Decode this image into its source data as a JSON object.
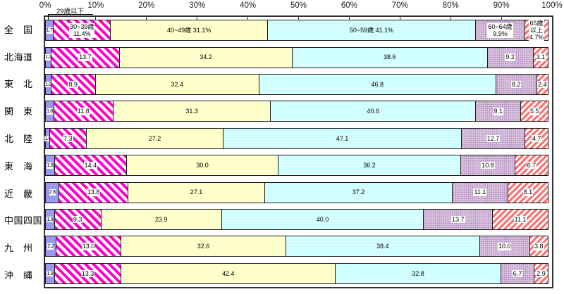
{
  "callout": {
    "label": "29歳以下"
  },
  "chart_data": {
    "type": "bar",
    "subtype": "stacked-horizontal-100percent",
    "orientation": "horizontal",
    "unit": "%",
    "xlim": [
      0,
      100
    ],
    "x_tick_labels": [
      "0%",
      "10%",
      "20%",
      "30%",
      "40%",
      "50%",
      "60%",
      "70%",
      "80%",
      "90%",
      "100%"
    ],
    "grid": "top-ticks-only",
    "legend_position": "inline-first-row",
    "categories": [
      "全　国",
      "北海道",
      "東　北",
      "関　東",
      "北　陸",
      "東　海",
      "近　畿",
      "中国四国",
      "九　州",
      "沖　縄"
    ],
    "series": [
      {
        "name": "29歳以下",
        "color": "#9999ee",
        "pattern": "solid",
        "values": [
          1.7,
          1.2,
          1.2,
          1.8,
          1.0,
          1.9,
          2.8,
          1.9,
          2.2,
          1.9
        ]
      },
      {
        "name": "30~39歳",
        "color": "#ff00cc",
        "pattern": "diagonal-hatch-backslash",
        "values": [
          11.4,
          13.7,
          8.9,
          11.8,
          7.3,
          14.4,
          13.8,
          9.3,
          13.0,
          13.3
        ]
      },
      {
        "name": "40~49歳",
        "color": "#ffffcc",
        "pattern": "solid",
        "values": [
          31.1,
          34.2,
          32.4,
          31.3,
          27.2,
          30.0,
          27.1,
          23.9,
          32.6,
          42.4
        ]
      },
      {
        "name": "50~59歳",
        "color": "#ccffff",
        "pattern": "horizontal-lines",
        "values": [
          41.1,
          38.6,
          46.8,
          40.6,
          47.1,
          36.2,
          37.2,
          40.0,
          38.4,
          32.8
        ]
      },
      {
        "name": "60~64歳",
        "color": "#dcc6e0",
        "pattern": "dots",
        "values": [
          9.9,
          9.2,
          8.2,
          9.1,
          12.7,
          10.8,
          11.1,
          13.7,
          10.0,
          6.7
        ]
      },
      {
        "name": "65歳以上",
        "color": "#ff7070",
        "pattern": "diagonal-hatch-slash",
        "values": [
          4.7,
          3.1,
          2.4,
          5.5,
          4.7,
          6.7,
          8.1,
          11.1,
          3.8,
          2.9
        ]
      }
    ],
    "first_row_segment_labels": [
      [
        "1.7"
      ],
      [
        "30~39歳",
        "11.4%"
      ],
      [
        "40~49歳  31.1%"
      ],
      [
        "50~59歳  41.1%"
      ],
      [
        "60~64歳",
        "9.9%"
      ],
      [
        "65歳",
        "以上",
        "4.7%"
      ]
    ],
    "boxed_label_segments": [
      0,
      1,
      4,
      5
    ]
  }
}
